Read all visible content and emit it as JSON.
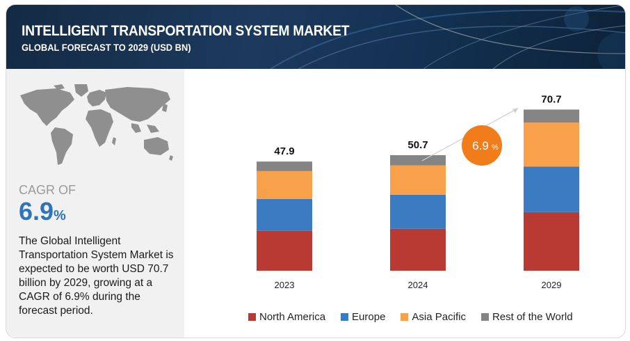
{
  "header": {
    "title": "INTELLIGENT TRANSPORTATION SYSTEM MARKET",
    "subtitle": "GLOBAL FORECAST TO 2029 (USD BN)"
  },
  "left": {
    "cagr_label": "CAGR OF",
    "cagr_value": "6.9",
    "cagr_unit": "%",
    "description": "The Global Intelligent Transportation System Market is expected to be worth USD 70.7 billion by 2029, growing at a CAGR of 6.9% during the forecast period."
  },
  "badge": {
    "value": "6.9",
    "unit": "%",
    "color": "#f07d1a"
  },
  "chart_data": {
    "type": "bar",
    "stacked": true,
    "categories": [
      "2023",
      "2024",
      "2029"
    ],
    "totals": [
      "47.9",
      "50.7",
      "70.7"
    ],
    "ylim": [
      0,
      75
    ],
    "series": [
      {
        "name": "North America",
        "color": "#b83a32",
        "values": [
          17.5,
          18.4,
          25.7
        ]
      },
      {
        "name": "Europe",
        "color": "#3a7bc1",
        "values": [
          14.0,
          14.9,
          20.0
        ]
      },
      {
        "name": "Asia Pacific",
        "color": "#f9a04b",
        "values": [
          12.2,
          12.9,
          19.3
        ]
      },
      {
        "name": "Rest of the World",
        "color": "#848484",
        "values": [
          4.2,
          4.5,
          5.7
        ]
      }
    ],
    "legend_position": "bottom"
  }
}
